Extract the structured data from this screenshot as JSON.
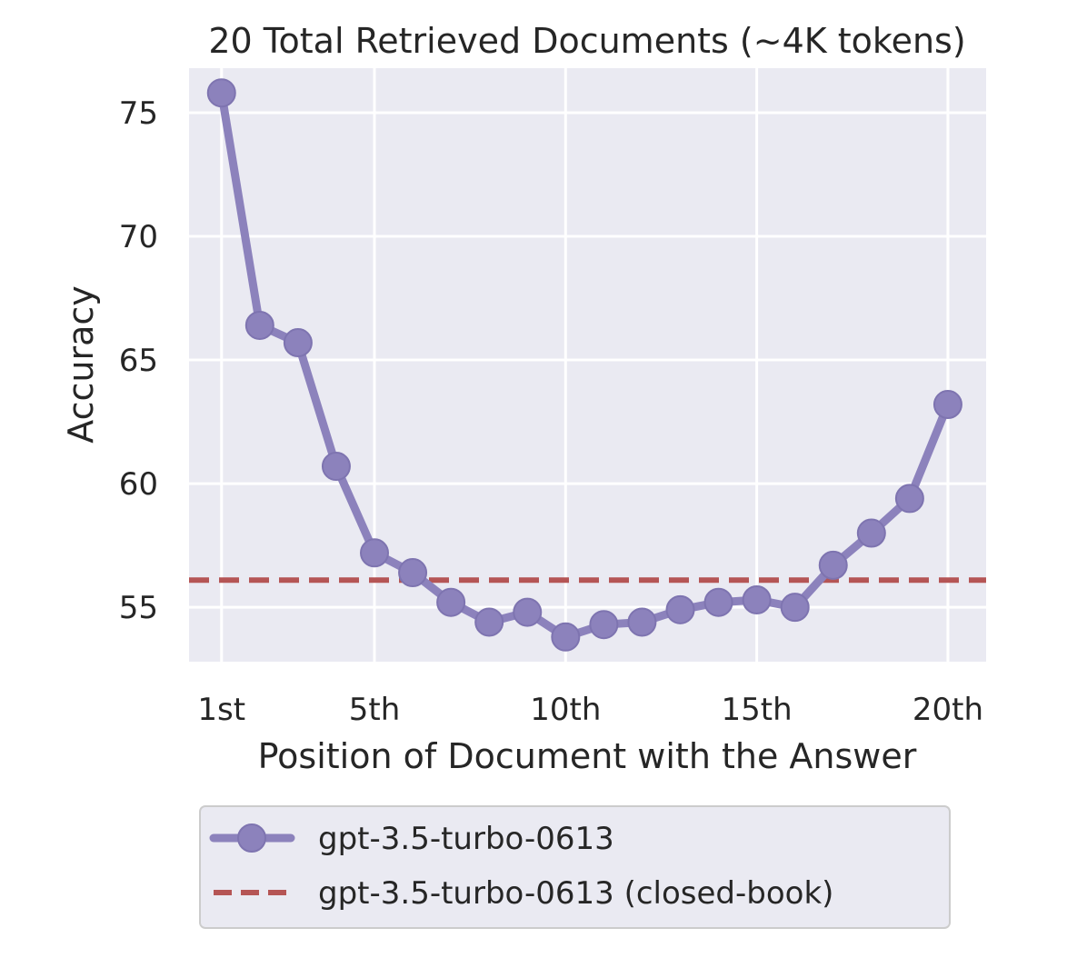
{
  "chart_data": {
    "type": "line",
    "title": "20 Total Retrieved Documents (~4K tokens)",
    "xlabel": "Position of Document with the Answer",
    "ylabel": "Accuracy",
    "x": [
      1,
      2,
      3,
      4,
      5,
      6,
      7,
      8,
      9,
      10,
      11,
      12,
      13,
      14,
      15,
      16,
      17,
      18,
      19,
      20
    ],
    "xticks": [
      1,
      5,
      10,
      15,
      20
    ],
    "xticklabels": [
      "1st",
      "5th",
      "10th",
      "15th",
      "20th"
    ],
    "yticks": [
      55,
      60,
      65,
      70,
      75
    ],
    "yticklabels": [
      "55",
      "60",
      "65",
      "70",
      "75"
    ],
    "xlim": [
      0.15,
      21.0
    ],
    "ylim": [
      52.8,
      76.8
    ],
    "grid": true,
    "series": [
      {
        "name": "gpt-3.5-turbo-0613",
        "style": "line-marker",
        "color": "#8c82bc",
        "values": [
          75.8,
          66.4,
          65.7,
          60.7,
          57.2,
          56.4,
          55.2,
          54.4,
          54.8,
          53.8,
          54.3,
          54.4,
          54.9,
          55.2,
          55.3,
          55.0,
          56.7,
          58.0,
          59.4,
          63.2
        ]
      },
      {
        "name": "gpt-3.5-turbo-0613 (closed-book)",
        "style": "dashed",
        "color": "#b55555",
        "value": 56.1
      }
    ],
    "legend_position": "bottom-center"
  }
}
